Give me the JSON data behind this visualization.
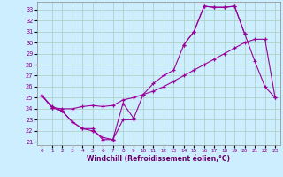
{
  "xlabel": "Windchill (Refroidissement éolien,°C)",
  "bg_color": "#cceeff",
  "line_color": "#990099",
  "grid_color": "#aaccbb",
  "xlim": [
    -0.5,
    23.5
  ],
  "ylim": [
    20.7,
    33.7
  ],
  "yticks": [
    21,
    22,
    23,
    24,
    25,
    26,
    27,
    28,
    29,
    30,
    31,
    32,
    33
  ],
  "xticks": [
    0,
    1,
    2,
    3,
    4,
    5,
    6,
    7,
    8,
    9,
    10,
    11,
    12,
    13,
    14,
    15,
    16,
    17,
    18,
    19,
    20,
    21,
    22,
    23
  ],
  "s1_x": [
    0,
    1,
    2,
    3,
    4,
    5,
    6,
    7,
    8,
    9
  ],
  "s1_y": [
    25.2,
    24.1,
    23.8,
    22.8,
    22.2,
    22.2,
    21.2,
    21.2,
    24.5,
    23.2
  ],
  "s2_x": [
    0,
    1,
    2,
    3,
    4,
    5,
    6,
    7,
    8,
    9,
    10,
    11,
    12,
    13,
    14,
    15,
    16,
    17,
    18,
    19,
    20,
    21,
    22,
    23
  ],
  "s2_y": [
    25.2,
    24.1,
    24.0,
    24.0,
    24.2,
    24.3,
    24.2,
    24.3,
    24.8,
    25.0,
    25.3,
    25.6,
    26.0,
    26.5,
    27.0,
    27.5,
    28.0,
    28.5,
    29.0,
    29.5,
    30.0,
    30.3,
    30.3,
    25.0
  ],
  "s3_x": [
    0,
    1,
    2,
    3,
    4,
    5,
    6,
    7,
    8,
    9,
    10,
    11,
    12,
    13,
    14,
    15,
    16,
    17,
    18,
    19,
    20,
    21,
    22,
    23
  ],
  "s3_y": [
    25.2,
    24.2,
    23.8,
    22.8,
    22.2,
    22.0,
    21.4,
    21.2,
    23.0,
    23.0,
    25.3,
    26.3,
    27.0,
    27.5,
    29.8,
    31.0,
    33.3,
    33.2,
    33.2,
    33.3,
    30.8,
    28.3,
    26.0,
    25.0
  ],
  "s4_x": [
    14,
    15,
    16,
    17,
    18,
    19,
    20
  ],
  "s4_y": [
    29.8,
    31.0,
    33.3,
    33.2,
    33.2,
    33.3,
    30.8
  ]
}
